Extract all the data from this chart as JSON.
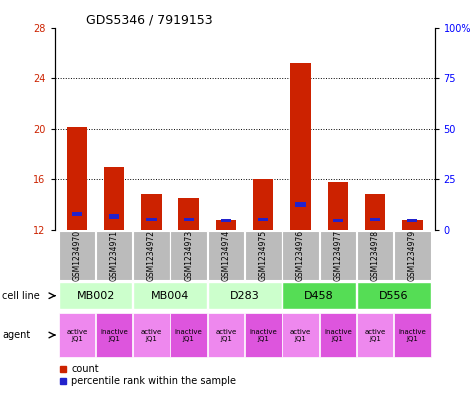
{
  "title": "GDS5346 / 7919153",
  "samples": [
    "GSM1234970",
    "GSM1234971",
    "GSM1234972",
    "GSM1234973",
    "GSM1234974",
    "GSM1234975",
    "GSM1234976",
    "GSM1234977",
    "GSM1234978",
    "GSM1234979"
  ],
  "count_values": [
    20.1,
    17.0,
    14.8,
    14.5,
    12.8,
    16.0,
    25.2,
    15.8,
    14.8,
    12.8
  ],
  "blue_bar_bottoms": [
    13.1,
    12.9,
    12.7,
    12.7,
    12.6,
    12.7,
    13.8,
    12.65,
    12.7,
    12.65
  ],
  "blue_bar_heights": [
    0.35,
    0.32,
    0.28,
    0.28,
    0.25,
    0.28,
    0.4,
    0.25,
    0.28,
    0.25
  ],
  "ylim_left": [
    12,
    28
  ],
  "ylim_right": [
    0,
    100
  ],
  "yticks_left": [
    12,
    16,
    20,
    24,
    28
  ],
  "yticks_right": [
    0,
    25,
    50,
    75,
    100
  ],
  "ytick_labels_right": [
    "0",
    "25",
    "50",
    "75",
    "100%"
  ],
  "cell_lines": [
    {
      "label": "MB002",
      "cols": [
        0,
        1
      ],
      "color": "#ccffcc"
    },
    {
      "label": "MB004",
      "cols": [
        2,
        3
      ],
      "color": "#ccffcc"
    },
    {
      "label": "D283",
      "cols": [
        4,
        5
      ],
      "color": "#ccffcc"
    },
    {
      "label": "D458",
      "cols": [
        6,
        7
      ],
      "color": "#55dd55"
    },
    {
      "label": "D556",
      "cols": [
        8,
        9
      ],
      "color": "#55dd55"
    }
  ],
  "agents": [
    {
      "label": "active\nJQ1",
      "color": "#ee88ee"
    },
    {
      "label": "inactive\nJQ1",
      "color": "#dd55dd"
    },
    {
      "label": "active\nJQ1",
      "color": "#ee88ee"
    },
    {
      "label": "inactive\nJQ1",
      "color": "#dd55dd"
    },
    {
      "label": "active\nJQ1",
      "color": "#ee88ee"
    },
    {
      "label": "inactive\nJQ1",
      "color": "#dd55dd"
    },
    {
      "label": "active\nJQ1",
      "color": "#ee88ee"
    },
    {
      "label": "inactive\nJQ1",
      "color": "#dd55dd"
    },
    {
      "label": "active\nJQ1",
      "color": "#ee88ee"
    },
    {
      "label": "inactive\nJQ1",
      "color": "#dd55dd"
    }
  ],
  "bar_color_red": "#cc2200",
  "bar_color_blue": "#2222cc",
  "bar_width": 0.55,
  "blue_bar_width": 0.28,
  "sample_bg_color": "#bbbbbb",
  "legend_red_label": "count",
  "legend_blue_label": "percentile rank within the sample",
  "cell_line_label": "cell line",
  "agent_label": "agent"
}
